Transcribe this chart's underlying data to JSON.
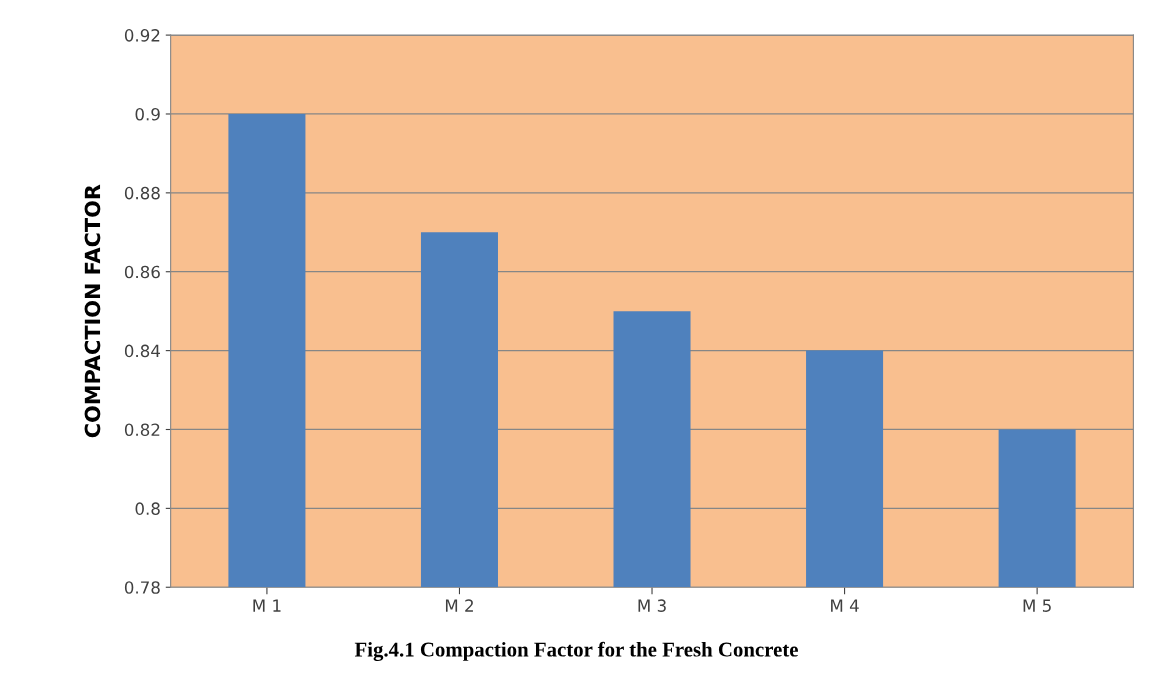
{
  "chart_data": {
    "type": "bar",
    "ylabel": "COMPACTION FACTOR",
    "categories": [
      "M 1",
      "M 2",
      "M 3",
      "M 4",
      "M 5"
    ],
    "values": [
      0.9,
      0.87,
      0.85,
      0.84,
      0.82
    ],
    "color": "#4f81bd",
    "ylim": [
      0.78,
      0.92
    ],
    "yticks": [
      0.78,
      0.8,
      0.82,
      0.84,
      0.86,
      0.88,
      0.9,
      0.92
    ],
    "grid": "y",
    "annotations": [
      "Fig.4.1 Compaction Factor for the Fresh Concrete"
    ]
  }
}
